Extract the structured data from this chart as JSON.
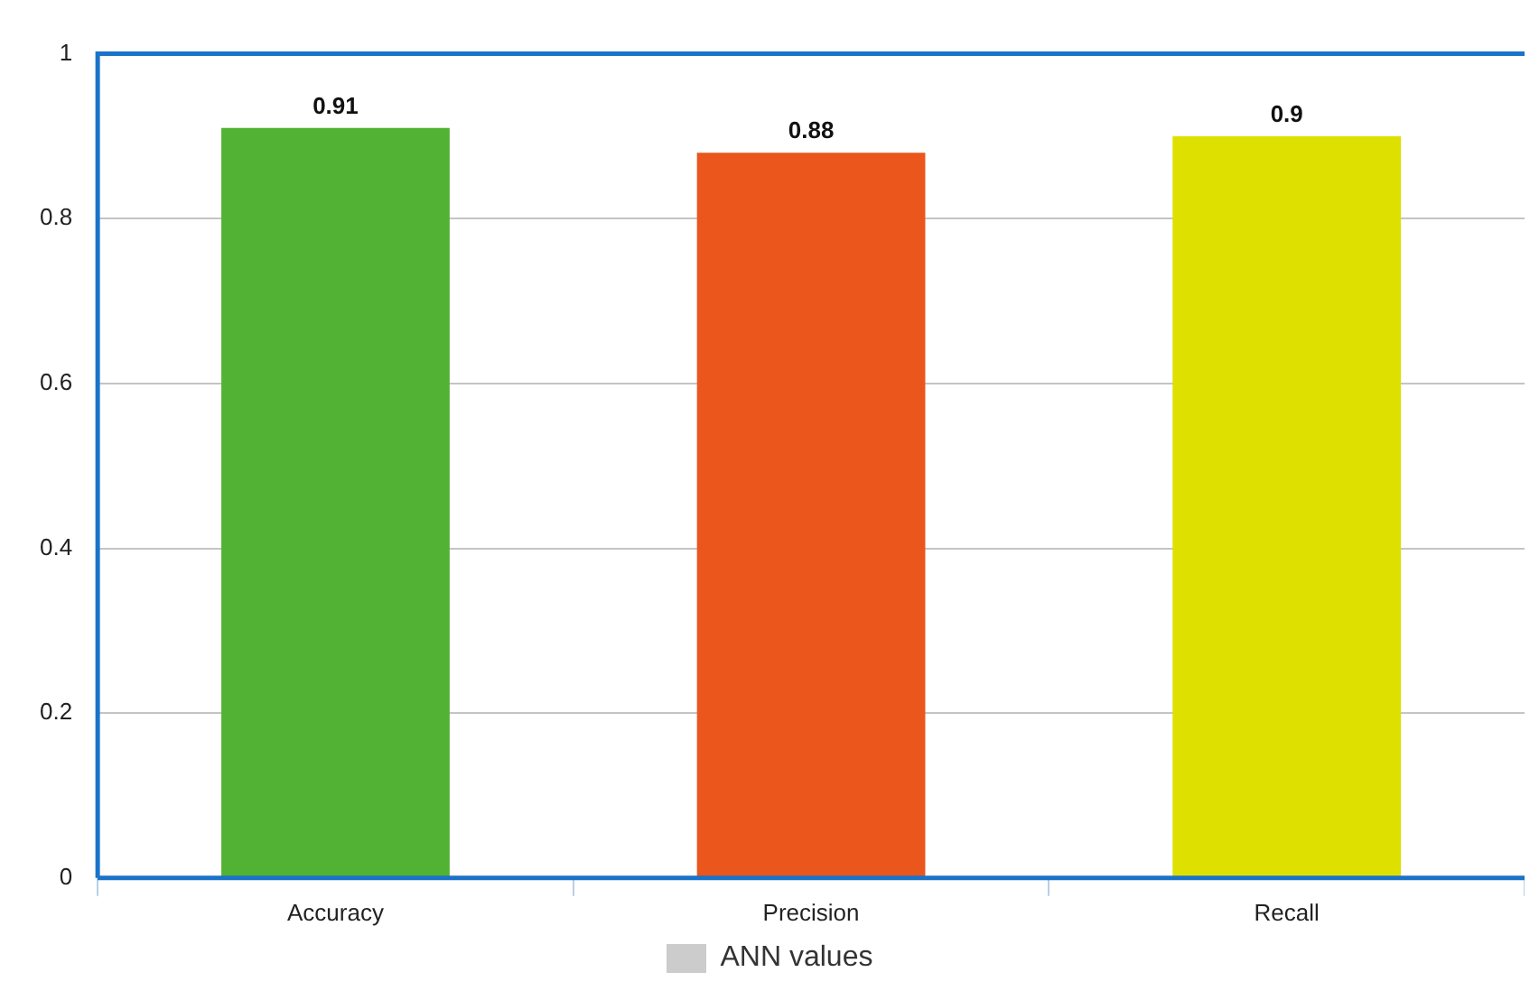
{
  "chart_data": {
    "type": "bar",
    "categories": [
      "Accuracy",
      "Precision",
      "Recall"
    ],
    "series": [
      {
        "name": "ANN values",
        "color": "#cccccc",
        "colors": [
          "#52b233",
          "#ea561c",
          "#dee000"
        ],
        "values": [
          0.91,
          0.88,
          0.9
        ]
      }
    ],
    "ylim": [
      0,
      1
    ],
    "yticks": [
      0,
      0.2,
      0.4,
      0.6,
      0.8,
      1
    ],
    "grid": "y",
    "legend": "bottom",
    "data_labels": true
  }
}
